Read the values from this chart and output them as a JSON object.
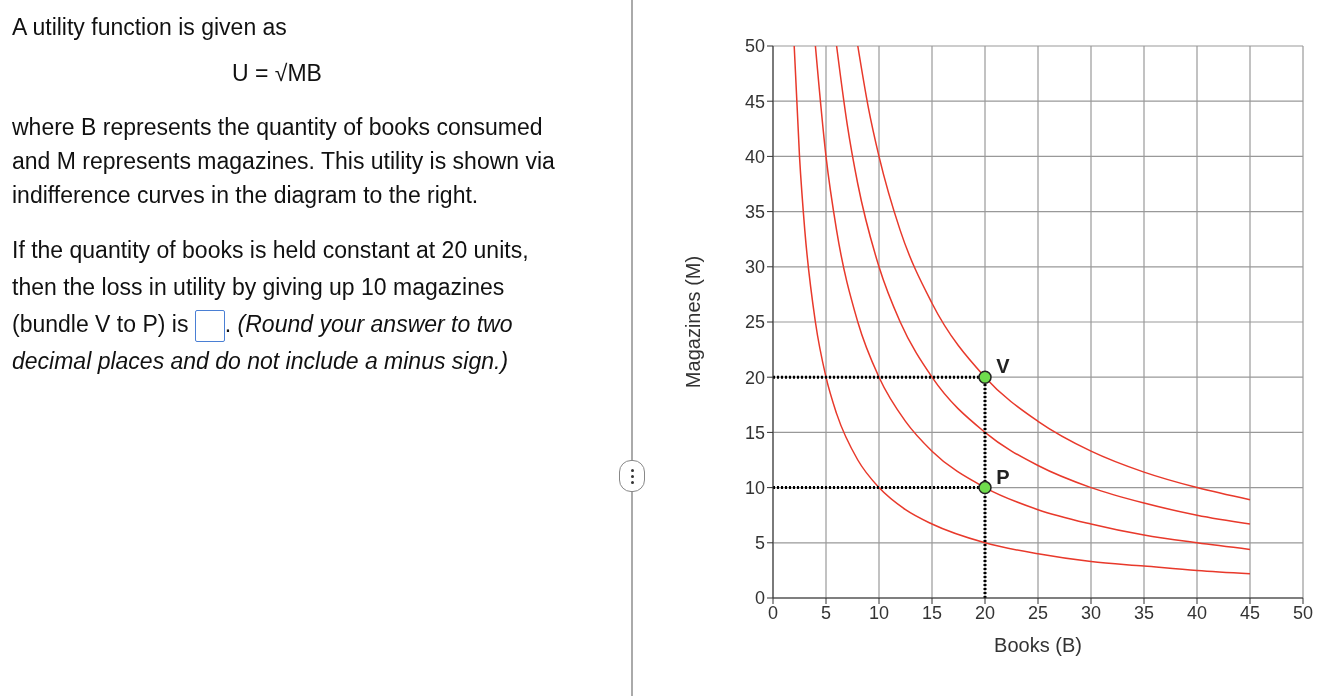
{
  "chart_data": [
    {
      "type": "other",
      "annotations": [
        "A utility function is given as",
        "U = √MB",
        "where B represents the quantity of books consumed and M represents magazines. This utility is shown via indifference curves in the diagram to the right.",
        "If the quantity of books is held constant at 20 units, then the loss in utility by giving up 10 magazines (bundle V to P) is",
        ".",
        "(Round your answer to two decimal places and do not include a minus sign.)"
      ]
    },
    {
      "type": "line",
      "xlabel": "Books (B)",
      "ylabel": "Magazines (M)",
      "xlim": [
        0,
        50
      ],
      "ylim": [
        0,
        50
      ],
      "xticks": [
        0,
        5,
        10,
        15,
        20,
        25,
        30,
        35,
        40,
        45,
        50
      ],
      "yticks": [
        0,
        5,
        10,
        15,
        20,
        25,
        30,
        35,
        40,
        45,
        50
      ],
      "grid": true,
      "marker": "none",
      "series": [
        {
          "color": "#e8392b",
          "x": [
            2,
            2.5,
            3,
            4,
            5,
            6,
            8,
            10,
            12.5,
            15,
            20,
            25,
            30,
            35,
            40,
            45
          ],
          "values": [
            50,
            40,
            33.3,
            25,
            20,
            16.7,
            12.5,
            10,
            8,
            6.7,
            5,
            4,
            3.3,
            2.9,
            2.5,
            2.2
          ]
        },
        {
          "color": "#e8392b",
          "x": [
            4,
            5,
            6,
            8,
            10,
            12.5,
            15,
            20,
            25,
            30,
            35,
            40,
            45
          ],
          "values": [
            50,
            40,
            33.3,
            25,
            20,
            16,
            13.3,
            10,
            8,
            6.7,
            5.7,
            5,
            4.4
          ]
        },
        {
          "color": "#e8392b",
          "x": [
            6,
            7,
            8,
            10,
            12,
            15,
            20,
            25,
            30,
            35,
            40,
            45
          ],
          "values": [
            50,
            42.9,
            37.5,
            30,
            25,
            20,
            15,
            12,
            10,
            8.6,
            7.5,
            6.7
          ]
        },
        {
          "color": "#e8392b",
          "x": [
            8,
            9,
            10,
            12,
            15,
            20,
            25,
            30,
            35,
            40,
            45
          ],
          "values": [
            50,
            44.4,
            40,
            33.3,
            26.7,
            20,
            16,
            13.3,
            11.4,
            10,
            8.9
          ]
        },
        {
          "color": "#000000",
          "line_style": "dotted",
          "x": [
            0,
            20
          ],
          "values": [
            20,
            20
          ]
        },
        {
          "color": "#000000",
          "line_style": "dotted",
          "x": [
            0,
            20
          ],
          "values": [
            10,
            10
          ]
        },
        {
          "color": "#000000",
          "line_style": "dotted",
          "x": [
            20,
            20
          ],
          "values": [
            0,
            20
          ]
        },
        {
          "type": "scatter",
          "color": "#6fdc4d",
          "marker": "circle",
          "x": [
            20,
            20
          ],
          "values": [
            20,
            10
          ]
        }
      ],
      "annotations": [
        {
          "text": "V",
          "x": 20,
          "y": 20
        },
        {
          "text": "P",
          "x": 20,
          "y": 10
        }
      ]
    }
  ]
}
